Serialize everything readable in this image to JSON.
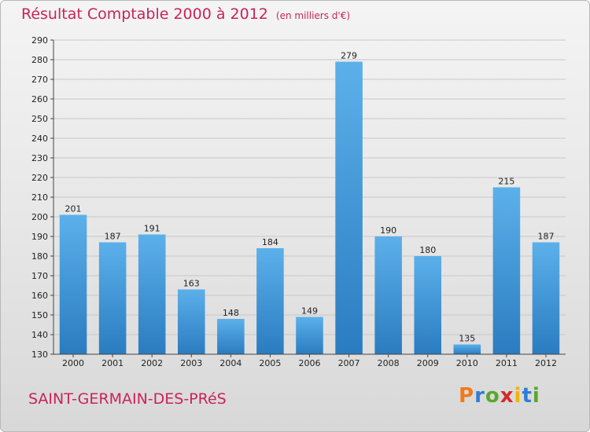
{
  "header": {
    "title": "Résultat Comptable 2000 à 2012",
    "unit": "(en milliers d'€)"
  },
  "footer": {
    "commune": "SAINT-GERMAIN-DES-PRéS",
    "logo_letters": [
      "P",
      "r",
      "o",
      "x",
      "i",
      "t",
      "i"
    ],
    "logo_colors": [
      "#f07a1a",
      "#2e7dd7",
      "#5aa62e",
      "#d42a2a",
      "#f0b400",
      "#2e7dd7",
      "#5aa62e"
    ]
  },
  "colors": {
    "title": "#c9235a",
    "bar_top": "#5cb0ea",
    "bar_bottom": "#2a7cc0"
  },
  "chart_data": {
    "type": "bar",
    "title": "Résultat Comptable 2000 à 2012",
    "ylabel": "(en milliers d'€)",
    "xlabel": "",
    "categories": [
      "2000",
      "2001",
      "2002",
      "2003",
      "2004",
      "2005",
      "2006",
      "2007",
      "2008",
      "2009",
      "2010",
      "2011",
      "2012"
    ],
    "values": [
      201,
      187,
      191,
      163,
      148,
      184,
      149,
      279,
      190,
      180,
      135,
      215,
      187
    ],
    "ylim": [
      130,
      290
    ],
    "yticks": [
      130,
      140,
      150,
      160,
      170,
      180,
      190,
      200,
      210,
      220,
      230,
      240,
      250,
      260,
      270,
      280,
      290
    ],
    "grid": true
  }
}
